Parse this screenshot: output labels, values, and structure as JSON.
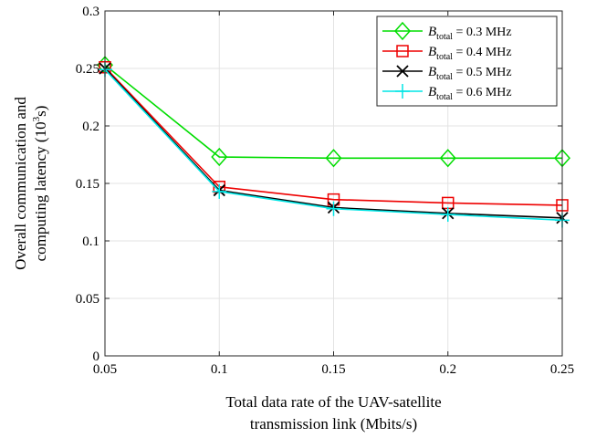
{
  "chart_data": {
    "type": "line",
    "title": "",
    "xlabel": [
      "Total data rate of the UAV-satellite",
      "transmission link (Mbits/s)"
    ],
    "ylabel": [
      "Overall communication and",
      "computing latency (10",
      "3",
      "s)"
    ],
    "x": [
      0.05,
      0.1,
      0.15,
      0.2,
      0.25
    ],
    "xlim": [
      0.05,
      0.25
    ],
    "ylim": [
      0,
      0.3
    ],
    "xticks": [
      "0.05",
      "0.1",
      "0.15",
      "0.2",
      "0.25"
    ],
    "yticks": [
      "0",
      "0.05",
      "0.1",
      "0.15",
      "0.2",
      "0.25",
      "0.3"
    ],
    "grid": true,
    "legend_position": "top-right",
    "series": [
      {
        "name": "B_total = 0.3 MHz",
        "legend": {
          "sym": "B",
          "sub": "total",
          "rest": " = 0.3 MHz"
        },
        "color": "#00dd00",
        "marker": "diamond",
        "values": [
          0.253,
          0.173,
          0.172,
          0.172,
          0.172
        ]
      },
      {
        "name": "B_total = 0.4 MHz",
        "legend": {
          "sym": "B",
          "sub": "total",
          "rest": " = 0.4 MHz"
        },
        "color": "#ee0000",
        "marker": "square",
        "values": [
          0.251,
          0.147,
          0.136,
          0.133,
          0.131
        ]
      },
      {
        "name": "B_total = 0.5 MHz",
        "legend": {
          "sym": "B",
          "sub": "total",
          "rest": " = 0.5 MHz"
        },
        "color": "#000000",
        "marker": "x",
        "values": [
          0.25,
          0.144,
          0.129,
          0.124,
          0.12
        ]
      },
      {
        "name": "B_total = 0.6 MHz",
        "legend": {
          "sym": "B",
          "sub": "total",
          "rest": " = 0.6 MHz"
        },
        "color": "#00e5e5",
        "marker": "plus",
        "values": [
          0.249,
          0.143,
          0.128,
          0.123,
          0.118
        ]
      }
    ]
  }
}
